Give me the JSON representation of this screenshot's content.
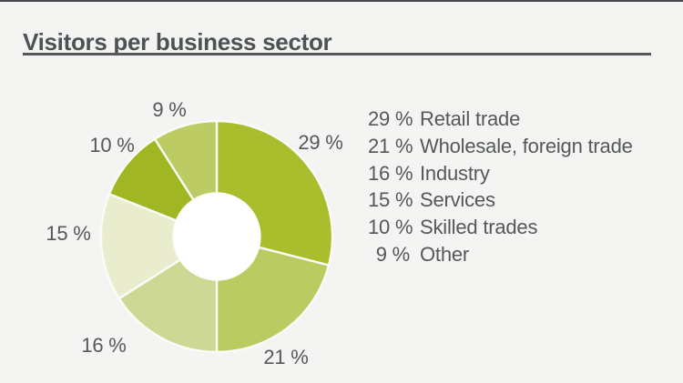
{
  "page": {
    "title": "Visitors per business sector",
    "background_color": "#f4f4f2",
    "title_color": "#4d5257",
    "rule_color": "#54585c",
    "text_color": "#54585c"
  },
  "chart_data": {
    "type": "pie",
    "subtype": "donut",
    "title": "Visitors per business sector",
    "unit": "%",
    "direction": "clockwise",
    "start_angle_deg": 0,
    "legend_position": "right",
    "hole_color": "#ffffff",
    "divider_color": "#fbfbf7",
    "slices": [
      {
        "label": "Retail trade",
        "value": 29,
        "pct_label": "29 %",
        "color": "#a9bd2d"
      },
      {
        "label": "Wholesale, foreign trade",
        "value": 21,
        "pct_label": "21 %",
        "color": "#b9cb61"
      },
      {
        "label": "Industry",
        "value": 16,
        "pct_label": "16 %",
        "color": "#ccd893"
      },
      {
        "label": "Services",
        "value": 15,
        "pct_label": "15 %",
        "color": "#e9eccd"
      },
      {
        "label": "Skilled trades",
        "value": 10,
        "pct_label": "10 %",
        "color": "#a1b623"
      },
      {
        "label": "Other",
        "value": 9,
        "pct_label": "9 %",
        "color": "#bdcb65"
      }
    ]
  }
}
